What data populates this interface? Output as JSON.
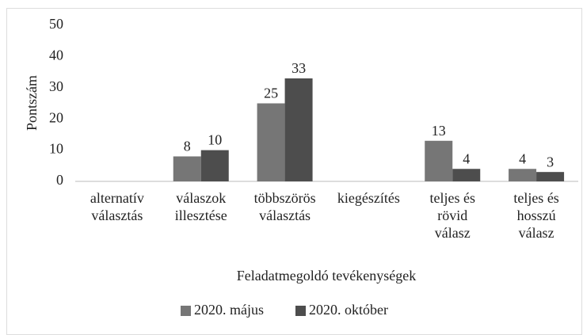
{
  "chart_data": {
    "type": "bar",
    "categories": [
      "alternatív\nválasztás",
      "válaszok\nillesztése",
      "többszörös\nválasztás",
      "kiegészítés",
      "teljes és\nrövid\nválasz",
      "teljes és\nhosszú\nválasz"
    ],
    "series": [
      {
        "name": "2020. május",
        "color": "#767676",
        "values": [
          null,
          8,
          25,
          null,
          13,
          4
        ]
      },
      {
        "name": "2020. október",
        "color": "#4d4d4d",
        "values": [
          null,
          10,
          33,
          null,
          4,
          3
        ]
      }
    ],
    "ylabel": "Pontszám",
    "xlabel": "Feladatmegoldó tevékenységek",
    "ylim": [
      0,
      50
    ],
    "yticks": [
      0,
      10,
      20,
      30,
      40,
      50
    ],
    "grid": false,
    "legend": "bottom"
  }
}
